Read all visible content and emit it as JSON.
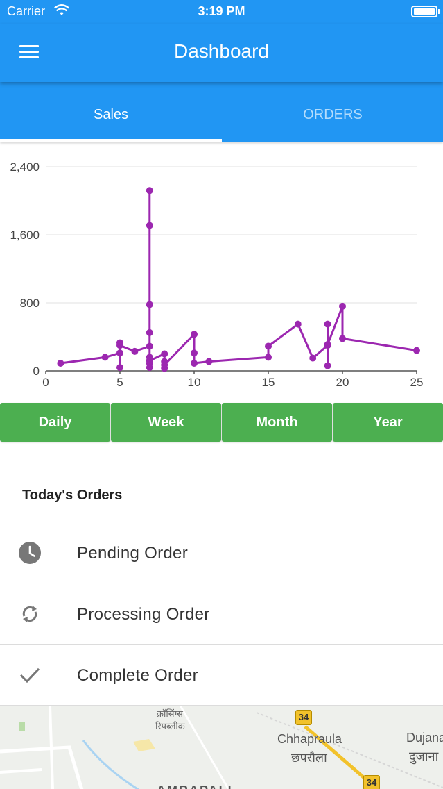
{
  "status_bar": {
    "carrier": "Carrier",
    "time": "3:19 PM"
  },
  "app_bar": {
    "title": "Dashboard",
    "menu_icon": "hamburger-menu-icon"
  },
  "tabs": [
    {
      "label": "Sales",
      "active": true
    },
    {
      "label": "ORDERS",
      "active": false
    }
  ],
  "colors": {
    "primary": "#2196f3",
    "accent_green": "#4caf50",
    "series": "#9c27b0"
  },
  "chart_data": {
    "type": "line",
    "title": "",
    "xlabel": "",
    "ylabel": "",
    "xlim": [
      0,
      25
    ],
    "ylim": [
      0,
      2400
    ],
    "x_ticks": [
      "0",
      "5",
      "10",
      "15",
      "20",
      "25"
    ],
    "x_tick_values": [
      0,
      5,
      10,
      15,
      20,
      25
    ],
    "y_ticks": [
      "0",
      "800",
      "1,600",
      "2,400"
    ],
    "y_tick_values": [
      0,
      800,
      1600,
      2400
    ],
    "grid": true,
    "series": [
      {
        "color": "#9c27b0",
        "points": [
          [
            1,
            90
          ],
          [
            4,
            160
          ],
          [
            5,
            210
          ],
          [
            5,
            330
          ],
          [
            5,
            40
          ],
          [
            5,
            300
          ],
          [
            6,
            230
          ],
          [
            7,
            290
          ],
          [
            7,
            2120
          ],
          [
            7,
            1710
          ],
          [
            7,
            780
          ],
          [
            7,
            450
          ],
          [
            7,
            160
          ],
          [
            7,
            90
          ],
          [
            7,
            40
          ],
          [
            7,
            120
          ],
          [
            8,
            200
          ],
          [
            8,
            110
          ],
          [
            8,
            30
          ],
          [
            8,
            70
          ],
          [
            10,
            430
          ],
          [
            10,
            210
          ],
          [
            10,
            90
          ],
          [
            11,
            110
          ],
          [
            15,
            160
          ],
          [
            15,
            290
          ],
          [
            17,
            550
          ],
          [
            18,
            150
          ],
          [
            19,
            300
          ],
          [
            19,
            550
          ],
          [
            19,
            60
          ],
          [
            19,
            310
          ],
          [
            20,
            760
          ],
          [
            20,
            380
          ],
          [
            25,
            240
          ]
        ]
      }
    ]
  },
  "range_buttons": [
    "Daily",
    "Week",
    "Month",
    "Year"
  ],
  "orders_section": {
    "title": "Today's Orders",
    "items": [
      {
        "label": "Pending Order",
        "icon": "clock-icon"
      },
      {
        "label": "Processing Order",
        "icon": "sync-icon"
      },
      {
        "label": "Complete Order",
        "icon": "check-icon"
      }
    ]
  },
  "map": {
    "labels": [
      "क्रॉसिंग्स",
      "रिपब्लीक",
      "Chhapraula",
      "छपरौला",
      "Dujana",
      "दुजाना",
      "AMRAPALI"
    ],
    "road_number": "34"
  }
}
